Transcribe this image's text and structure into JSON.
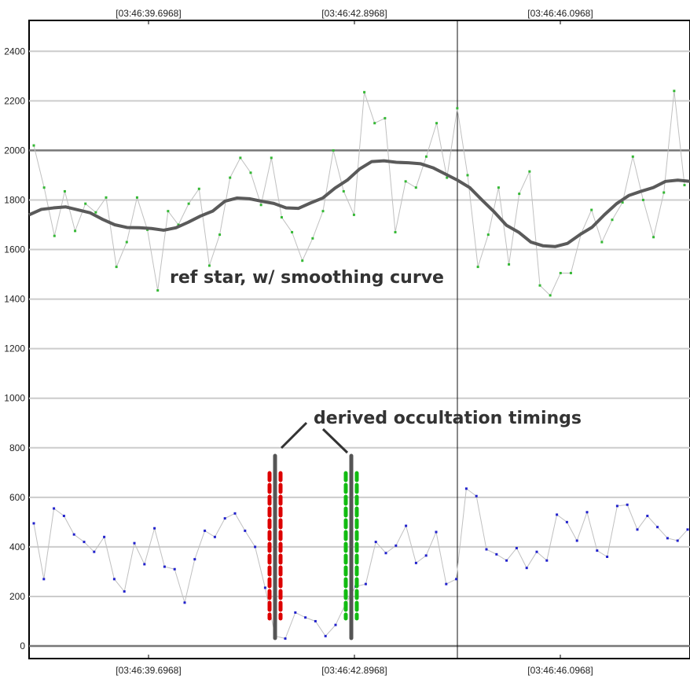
{
  "chart_data": {
    "type": "line",
    "ylim": [
      -30,
      2540
    ],
    "y_ticks": [
      0,
      200,
      400,
      600,
      800,
      1000,
      1200,
      1400,
      1600,
      1800,
      2000,
      2200,
      2400
    ],
    "x_tick_labels": [
      "[03:46:39.6968]",
      "[03:46:42.8968]",
      "[03:46:46.0968]"
    ],
    "grid": true,
    "annotations": {
      "ref_star": "ref star, w/ smoothing curve",
      "timings": "derived occultation timings"
    },
    "ref_star": {
      "values": [
        2020,
        1850,
        1655,
        1835,
        1675,
        1785,
        1750,
        1810,
        1530,
        1630,
        1810,
        1680,
        1435,
        1755,
        1700,
        1785,
        1845,
        1535,
        1660,
        1890,
        1970,
        1910,
        1780,
        1970,
        1730,
        1670,
        1555,
        1645,
        1755,
        2000,
        1835,
        1740,
        2235,
        2110,
        2130,
        1670,
        1875,
        1850,
        1975,
        2110,
        1890,
        2170,
        1900,
        1530,
        1660,
        1850,
        1540,
        1825,
        1915,
        1455,
        1415,
        1505,
        1505,
        1665,
        1760,
        1630,
        1720,
        1790,
        1975,
        1800,
        1650,
        1830,
        2240,
        1860
      ]
    },
    "smoothing_curve": {
      "values": [
        1740,
        1762,
        1768,
        1772,
        1760,
        1748,
        1722,
        1700,
        1689,
        1688,
        1685,
        1678,
        1688,
        1710,
        1735,
        1755,
        1795,
        1808,
        1805,
        1795,
        1786,
        1768,
        1766,
        1788,
        1808,
        1848,
        1880,
        1925,
        1955,
        1958,
        1952,
        1950,
        1946,
        1930,
        1905,
        1880,
        1850,
        1800,
        1752,
        1698,
        1670,
        1630,
        1615,
        1612,
        1625,
        1660,
        1690,
        1740,
        1785,
        1818,
        1835,
        1850,
        1875,
        1880,
        1875
      ]
    },
    "target": {
      "values": [
        495,
        270,
        555,
        525,
        450,
        420,
        380,
        440,
        270,
        220,
        415,
        330,
        475,
        320,
        310,
        175,
        350,
        465,
        440,
        515,
        535,
        465,
        400,
        235,
        40,
        30,
        135,
        115,
        100,
        40,
        85,
        170,
        240,
        250,
        420,
        375,
        405,
        485,
        335,
        365,
        460,
        250,
        270,
        635,
        605,
        390,
        370,
        345,
        395,
        315,
        380,
        345,
        530,
        500,
        425,
        540,
        385,
        360,
        565,
        570,
        470,
        525,
        480,
        435,
        425,
        470
      ]
    },
    "occultation_timings": {
      "disappearance_color": "#dd0000",
      "reappearance_color": "#11bb11",
      "marker_color": "#555555"
    },
    "colors": {
      "ref_points": "#35b835",
      "target_points": "#2222cc",
      "raw_line": "#c0c0c0",
      "smooth_line": "#5a5a5a",
      "grid": "#cccccc"
    }
  }
}
